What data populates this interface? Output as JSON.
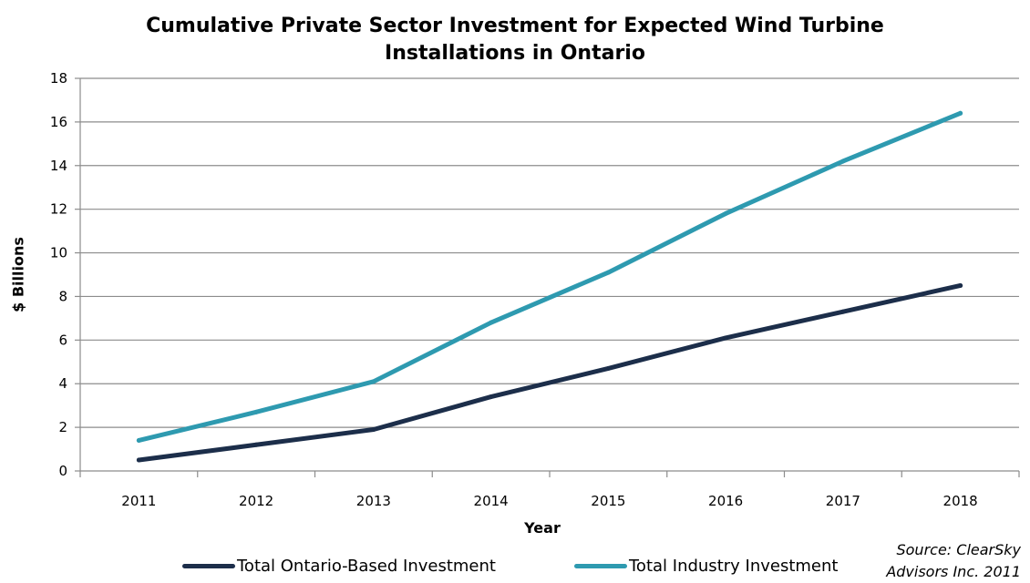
{
  "chart_data": {
    "type": "line",
    "title_line1": "Cumulative Private Sector Investment for Expected Wind Turbine",
    "title_line2": "Installations in Ontario",
    "xlabel": "Year",
    "ylabel": "$ Billions",
    "categories": [
      "2011",
      "2012",
      "2013",
      "2014",
      "2015",
      "2016",
      "2017",
      "2018"
    ],
    "ylim": [
      0,
      18
    ],
    "yticks": [
      0,
      2,
      4,
      6,
      8,
      10,
      12,
      14,
      16,
      18
    ],
    "grid": true,
    "legend_position": "bottom",
    "series": [
      {
        "name": "Total Ontario-Based Investment",
        "color": "#1c2e4a",
        "values": [
          0.5,
          1.2,
          1.9,
          3.4,
          4.7,
          6.1,
          7.3,
          8.5
        ]
      },
      {
        "name": "Total Industry Investment",
        "color": "#2e9ab0",
        "values": [
          1.4,
          2.7,
          4.1,
          6.8,
          9.1,
          11.8,
          14.2,
          16.4
        ]
      }
    ],
    "source_line1": "Source: ClearSky",
    "source_line2": "Advisors Inc. 2011"
  }
}
